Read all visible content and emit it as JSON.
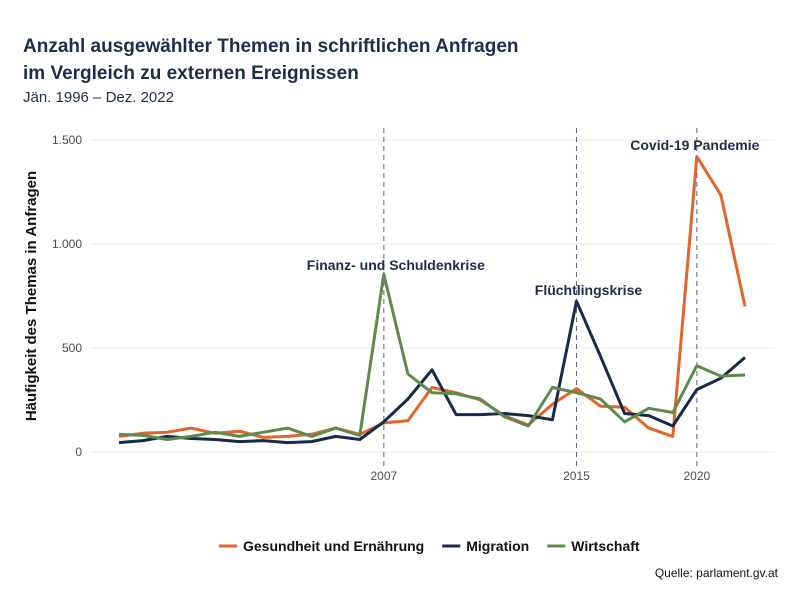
{
  "chart_data": {
    "type": "line",
    "title": "Anzahl ausgewählter Themen in schriftlichen Anfragen",
    "title_line2": "im Vergleich zu externen Ereignissen",
    "subtitle": "Jän. 1996 – Dez. 2022",
    "xlabel": "",
    "ylabel": "Häufigkeit des Themas in Anfragen",
    "source": "Quelle: parlament.gv.at",
    "xlim": [
      1996,
      2022
    ],
    "ylim": [
      0,
      1500
    ],
    "x_ticks": [
      2007,
      2015,
      2020
    ],
    "y_ticks": [
      0,
      500,
      1000,
      1500
    ],
    "y_tick_labels": [
      "0",
      "500",
      "1.000",
      "1.500"
    ],
    "grid": "horizontal",
    "legend_position": "bottom",
    "x": [
      1996,
      1997,
      1998,
      1999,
      2000,
      2001,
      2002,
      2003,
      2004,
      2005,
      2006,
      2007,
      2008,
      2009,
      2010,
      2011,
      2012,
      2013,
      2014,
      2015,
      2016,
      2017,
      2018,
      2019,
      2020,
      2021,
      2022
    ],
    "series": [
      {
        "name": "Gesundheit und Ernährung",
        "color": "#e0662c",
        "values": [
          75,
          90,
          95,
          115,
          90,
          100,
          70,
          75,
          85,
          115,
          85,
          140,
          150,
          310,
          285,
          250,
          175,
          130,
          230,
          305,
          220,
          215,
          115,
          75,
          1420,
          1235,
          700
        ]
      },
      {
        "name": "Migration",
        "color": "#172a4a",
        "values": [
          45,
          55,
          75,
          65,
          60,
          50,
          55,
          45,
          50,
          75,
          60,
          145,
          255,
          395,
          180,
          180,
          185,
          175,
          155,
          725,
          460,
          185,
          175,
          125,
          300,
          355,
          455
        ]
      },
      {
        "name": "Wirtschaft",
        "color": "#5f8a4e",
        "values": [
          85,
          80,
          60,
          75,
          95,
          75,
          95,
          115,
          75,
          115,
          80,
          855,
          375,
          285,
          280,
          255,
          170,
          125,
          310,
          285,
          255,
          145,
          210,
          190,
          415,
          365,
          370
        ]
      }
    ],
    "annotations": [
      {
        "x": 2007,
        "label": "Finanz- und Schuldenkrise"
      },
      {
        "x": 2015,
        "label": "Flüchtlingskrise"
      },
      {
        "x": 2020,
        "label": "Covid-19 Pandemie"
      }
    ]
  }
}
